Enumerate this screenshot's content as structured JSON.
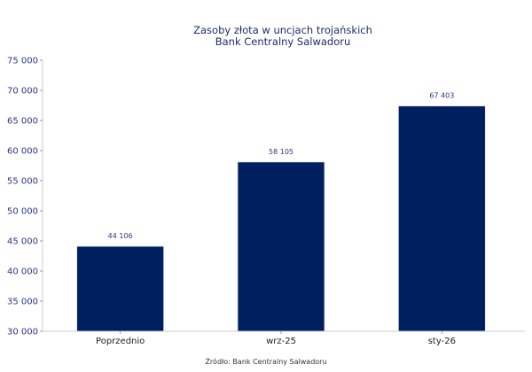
{
  "chart_data": {
    "type": "bar",
    "title": "Zasoby złota w uncjach trojańskich",
    "subtitle": "Bank Centralny Salwadoru",
    "source": "Źródło: Bank Centralny Salwadoru",
    "categories": [
      "Poprzednio",
      "wrz-25",
      "sty-26"
    ],
    "values": [
      44106,
      58105,
      67403
    ],
    "value_labels": [
      "44 106",
      "58 105",
      "67 403"
    ],
    "ylim": [
      30000,
      75000
    ],
    "yticks": [
      30000,
      35000,
      40000,
      45000,
      50000,
      55000,
      60000,
      65000,
      70000,
      75000
    ],
    "ytick_labels": [
      "30 000",
      "35 000",
      "40 000",
      "45 000",
      "50 000",
      "55 000",
      "60 000",
      "65 000",
      "70 000",
      "75 000"
    ],
    "xlabel": "",
    "ylabel": "",
    "grid": false,
    "bar_color": "#001f5f"
  }
}
